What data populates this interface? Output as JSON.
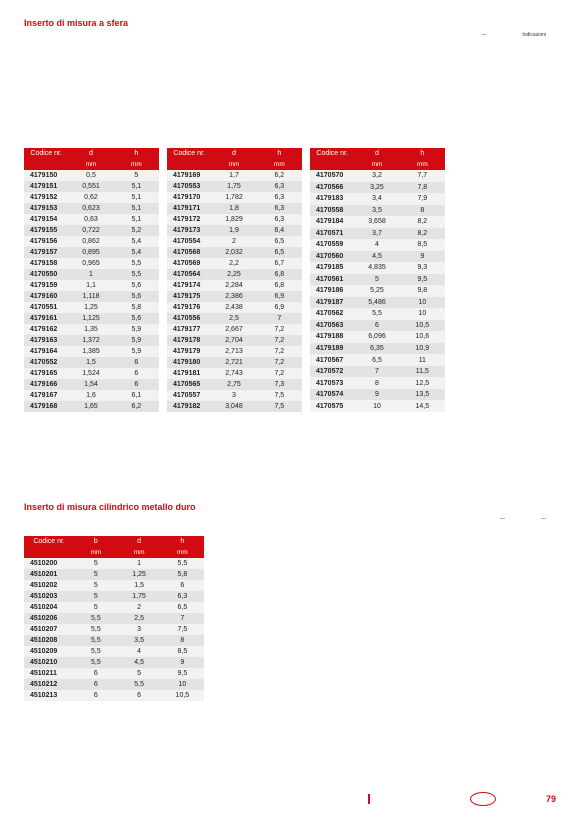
{
  "section1": {
    "title": "Inserto di misura a sfera",
    "meta_left": "—",
    "meta_right": "Indicazioni"
  },
  "section2": {
    "title": "Inserto di misura cilindrico metallo duro",
    "meta_left": "—",
    "meta_right": "—"
  },
  "table_headers3": [
    "Codice nr.",
    "d",
    "h"
  ],
  "table_subheaders3": [
    "",
    "mm",
    "mm"
  ],
  "table_headers4": [
    "Codice nr.",
    "b",
    "d",
    "h"
  ],
  "table_subheaders4": [
    "",
    "mm",
    "mm",
    "mm"
  ],
  "table_a": [
    [
      "4179150",
      "0,5",
      "5"
    ],
    [
      "4179151",
      "0,551",
      "5,1"
    ],
    [
      "4179152",
      "0,62",
      "5,1"
    ],
    [
      "4179153",
      "0,623",
      "5,1"
    ],
    [
      "4179154",
      "0,63",
      "5,1"
    ],
    [
      "4179155",
      "0,722",
      "5,2"
    ],
    [
      "4179156",
      "0,862",
      "5,4"
    ],
    [
      "4179157",
      "0,895",
      "5,4"
    ],
    [
      "4179158",
      "0,965",
      "5,5"
    ],
    [
      "4170550",
      "1",
      "5,5"
    ],
    [
      "4179159",
      "1,1",
      "5,6"
    ],
    [
      "4179160",
      "1,118",
      "5,6"
    ],
    [
      "4170551",
      "1,25",
      "5,8"
    ],
    [
      "4179161",
      "1,125",
      "5,6"
    ],
    [
      "4179162",
      "1,35",
      "5,9"
    ],
    [
      "4179163",
      "1,372",
      "5,9"
    ],
    [
      "4179164",
      "1,385",
      "5,9"
    ],
    [
      "4170552",
      "1,5",
      "6"
    ],
    [
      "4179165",
      "1,524",
      "6"
    ],
    [
      "4179166",
      "1,54",
      "6"
    ],
    [
      "4179167",
      "1,6",
      "6,1"
    ],
    [
      "4179168",
      "1,65",
      "6,2"
    ]
  ],
  "table_b": [
    [
      "4179169",
      "1,7",
      "6,2"
    ],
    [
      "4170553",
      "1,75",
      "6,3"
    ],
    [
      "4179170",
      "1,782",
      "6,3"
    ],
    [
      "4179171",
      "1,8",
      "6,3"
    ],
    [
      "4179172",
      "1,829",
      "6,3"
    ],
    [
      "4179173",
      "1,9",
      "6,4"
    ],
    [
      "4170554",
      "2",
      "6,5"
    ],
    [
      "4170568",
      "2,032",
      "6,5"
    ],
    [
      "4170569",
      "2,2",
      "6,7"
    ],
    [
      "4170564",
      "2,25",
      "6,8"
    ],
    [
      "4179174",
      "2,284",
      "6,8"
    ],
    [
      "4179175",
      "2,386",
      "6,9"
    ],
    [
      "4179176",
      "2,438",
      "6,9"
    ],
    [
      "4170556",
      "2,5",
      "7"
    ],
    [
      "4179177",
      "2,667",
      "7,2"
    ],
    [
      "4179178",
      "2,704",
      "7,2"
    ],
    [
      "4179179",
      "2,713",
      "7,2"
    ],
    [
      "4179180",
      "2,721",
      "7,2"
    ],
    [
      "4179181",
      "2,743",
      "7,2"
    ],
    [
      "4170565",
      "2,75",
      "7,3"
    ],
    [
      "4170557",
      "3",
      "7,5"
    ],
    [
      "4179182",
      "3,048",
      "7,5"
    ]
  ],
  "table_c": [
    [
      "4170570",
      "3,2",
      "7,7"
    ],
    [
      "4170566",
      "3,25",
      "7,8"
    ],
    [
      "4179183",
      "3,4",
      "7,9"
    ],
    [
      "4170558",
      "3,5",
      "8"
    ],
    [
      "4179184",
      "3,658",
      "8,2"
    ],
    [
      "4170571",
      "3,7",
      "8,2"
    ],
    [
      "4170559",
      "4",
      "8,5"
    ],
    [
      "4170560",
      "4,5",
      "9"
    ],
    [
      "4179185",
      "4,835",
      "9,3"
    ],
    [
      "4170561",
      "5",
      "9,5"
    ],
    [
      "4179186",
      "5,25",
      "9,8"
    ],
    [
      "4179187",
      "5,486",
      "10"
    ],
    [
      "4170562",
      "5,5",
      "10"
    ],
    [
      "4170563",
      "6",
      "10,5"
    ],
    [
      "4179188",
      "6,096",
      "10,6"
    ],
    [
      "4179189",
      "6,35",
      "10,9"
    ],
    [
      "4170567",
      "6,5",
      "11"
    ],
    [
      "4170572",
      "7",
      "11,5"
    ],
    [
      "4170573",
      "8",
      "12,5"
    ],
    [
      "4170574",
      "9",
      "13,5"
    ],
    [
      "4170575",
      "10",
      "14,5"
    ]
  ],
  "table_d": [
    [
      "4510200",
      "5",
      "1",
      "5,5"
    ],
    [
      "4510201",
      "5",
      "1,25",
      "5,8"
    ],
    [
      "4510202",
      "5",
      "1,5",
      "6"
    ],
    [
      "4510203",
      "5",
      "1,75",
      "6,3"
    ],
    [
      "4510204",
      "5",
      "2",
      "6,5"
    ],
    [
      "4510206",
      "5,5",
      "2,5",
      "7"
    ],
    [
      "4510207",
      "5,5",
      "3",
      "7,5"
    ],
    [
      "4510208",
      "5,5",
      "3,5",
      "8"
    ],
    [
      "4510209",
      "5,5",
      "4",
      "8,5"
    ],
    [
      "4510210",
      "5,5",
      "4,5",
      "9"
    ],
    [
      "4510211",
      "6",
      "5",
      "9,5"
    ],
    [
      "4510212",
      "6",
      "5,5",
      "10"
    ],
    [
      "4510213",
      "6",
      "6",
      "10,5"
    ]
  ],
  "footer": {
    "label": "",
    "page": "79"
  },
  "colors": {
    "brand_red": "#d20a11",
    "row_odd": "#f2f2f2",
    "row_even": "#e3e3e3",
    "text": "#222222",
    "background": "#ffffff"
  }
}
